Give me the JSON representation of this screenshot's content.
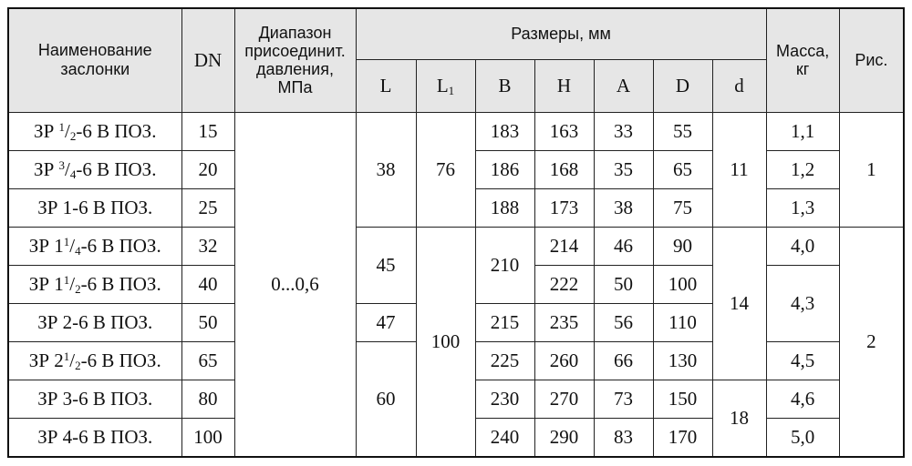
{
  "headers": {
    "name": [
      "Наименование",
      "заслонки"
    ],
    "dn": "DN",
    "pressure": [
      "Диапазон",
      "присоединит.",
      "давления,",
      "МПа"
    ],
    "dims": "Размеры, мм",
    "L": "L",
    "L1_base": "L",
    "L1_sub": "1",
    "B": "B",
    "H": "H",
    "A": "A",
    "D": "D",
    "d": "d",
    "mass": [
      "Масса,",
      "кг"
    ],
    "fig": "Рис."
  },
  "rows": [
    {
      "name": {
        "pre": "ЗР ",
        "sup": "1",
        "slash": "/",
        "sub": "2",
        "post": "-6  В  ПОЗ."
      },
      "dn": "15",
      "B": "183",
      "H": "163",
      "A": "33",
      "D": "55"
    },
    {
      "name": {
        "pre": "ЗР ",
        "sup": "3",
        "slash": "/",
        "sub": "4",
        "post": "-6  В  ПОЗ."
      },
      "dn": "20",
      "B": "186",
      "H": "168",
      "A": "35",
      "D": "65"
    },
    {
      "name": {
        "pre": "ЗР 1-6  В  ПОЗ."
      },
      "dn": "25",
      "B": "188",
      "H": "173",
      "A": "38",
      "D": "75"
    },
    {
      "name": {
        "pre": "ЗР 1",
        "sup": "1",
        "slash": "/",
        "sub": "4",
        "post": "-6  В  ПОЗ."
      },
      "dn": "32",
      "H": "214",
      "A": "46",
      "D": "90"
    },
    {
      "name": {
        "pre": "ЗР 1",
        "sup": "1",
        "slash": "/",
        "sub": "2",
        "post": "-6  В  ПОЗ."
      },
      "dn": "40",
      "H": "222",
      "A": "50",
      "D": "100"
    },
    {
      "name": {
        "pre": "ЗР 2-6  В  ПОЗ."
      },
      "dn": "50",
      "B": "215",
      "H": "235",
      "A": "56",
      "D": "110"
    },
    {
      "name": {
        "pre": "ЗР 2",
        "sup": "1",
        "slash": "/",
        "sub": "2",
        "post": "-6  В  ПОЗ."
      },
      "dn": "65",
      "B": "225",
      "H": "260",
      "A": "66",
      "D": "130"
    },
    {
      "name": {
        "pre": "ЗР 3-6  В  ПОЗ."
      },
      "dn": "80",
      "B": "230",
      "H": "270",
      "A": "73",
      "D": "150"
    },
    {
      "name": {
        "pre": "ЗР 4-6  В  ПОЗ."
      },
      "dn": "100",
      "B": "240",
      "H": "290",
      "A": "83",
      "D": "170"
    }
  ],
  "merged": {
    "pressure": "0...0,6",
    "L_1_3": "38",
    "L_4_5": "45",
    "L_6": "47",
    "L_7_9": "60",
    "L1_1_3": "76",
    "L1_4_9": "100",
    "B_4_5": "210",
    "d_1_3": "11",
    "d_4_7": "14",
    "d_8_9": "18",
    "mass_1": "1,1",
    "mass_2": "1,2",
    "mass_3": "1,3",
    "mass_4": "4,0",
    "mass_5_6": "4,3",
    "mass_7": "4,5",
    "mass_8": "4,6",
    "mass_9": "5,0",
    "fig_1_3": "1",
    "fig_4_9": "2"
  }
}
